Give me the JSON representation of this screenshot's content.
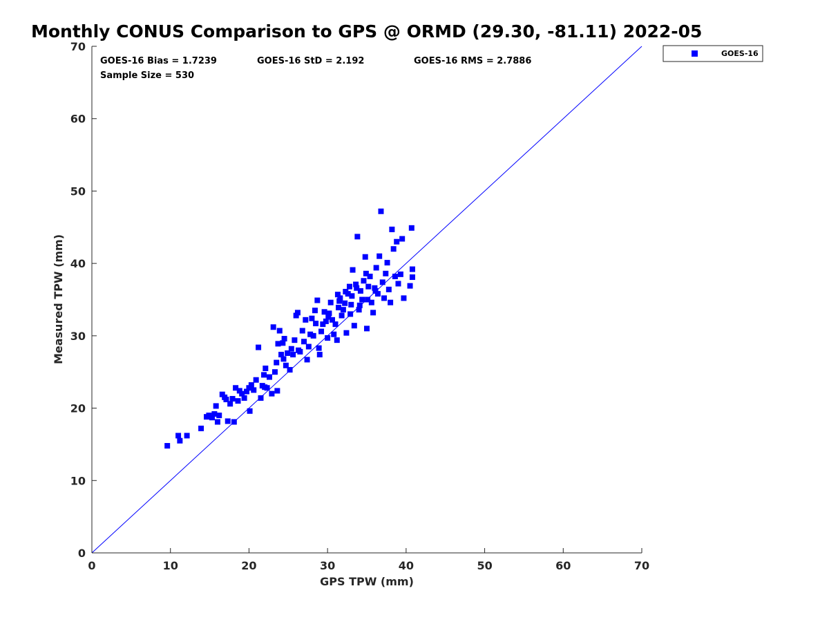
{
  "chart_data": {
    "type": "scatter",
    "title": "Monthly CONUS Comparison to GPS @ ORMD (29.30, -81.11) 2022-05",
    "xlabel": "GPS TPW (mm)",
    "ylabel": "Measured TPW (mm)",
    "xlim": [
      0,
      70
    ],
    "ylim": [
      0,
      70
    ],
    "xticks": [
      "0",
      "10",
      "20",
      "30",
      "40",
      "50",
      "60",
      "70"
    ],
    "yticks": [
      "0",
      "10",
      "20",
      "30",
      "40",
      "50",
      "60",
      "70"
    ],
    "grid": false,
    "legend_position": "top-right, outside plot",
    "colors": {
      "series": "#0000ff",
      "reference_line": "#0000ff"
    },
    "reference_line": {
      "from": [
        0,
        0
      ],
      "to": [
        70,
        70
      ]
    },
    "stats": {
      "bias": "GOES-16 Bias = 1.7239",
      "std": "GOES-16 StD = 2.192",
      "rms": "GOES-16 RMS = 2.7886",
      "sample_size": "Sample Size = 530"
    },
    "series": [
      {
        "name": "GOES-16",
        "marker": "square",
        "points": [
          [
            9.6,
            14.8
          ],
          [
            11.0,
            16.2
          ],
          [
            11.2,
            15.5
          ],
          [
            12.1,
            16.2
          ],
          [
            13.9,
            17.2
          ],
          [
            14.6,
            18.8
          ],
          [
            14.9,
            19.0
          ],
          [
            15.3,
            18.7
          ],
          [
            15.6,
            19.2
          ],
          [
            15.8,
            20.3
          ],
          [
            16.0,
            18.1
          ],
          [
            16.2,
            19.0
          ],
          [
            16.6,
            21.9
          ],
          [
            16.9,
            21.5
          ],
          [
            17.1,
            21.2
          ],
          [
            17.3,
            18.2
          ],
          [
            17.6,
            20.6
          ],
          [
            17.9,
            21.3
          ],
          [
            18.1,
            18.1
          ],
          [
            18.3,
            22.8
          ],
          [
            18.6,
            21.0
          ],
          [
            18.8,
            22.4
          ],
          [
            19.1,
            22.0
          ],
          [
            19.4,
            21.4
          ],
          [
            19.7,
            22.3
          ],
          [
            20.0,
            22.8
          ],
          [
            20.1,
            19.6
          ],
          [
            20.3,
            23.2
          ],
          [
            20.6,
            22.5
          ],
          [
            20.9,
            23.9
          ],
          [
            21.2,
            28.4
          ],
          [
            21.5,
            21.4
          ],
          [
            21.7,
            23.1
          ],
          [
            21.9,
            24.6
          ],
          [
            22.1,
            25.5
          ],
          [
            22.3,
            22.8
          ],
          [
            22.6,
            24.3
          ],
          [
            22.9,
            22.0
          ],
          [
            23.1,
            31.2
          ],
          [
            23.3,
            25.0
          ],
          [
            23.5,
            26.3
          ],
          [
            23.7,
            28.9
          ],
          [
            23.9,
            30.7
          ],
          [
            24.1,
            27.4
          ],
          [
            24.3,
            29.0
          ],
          [
            24.5,
            29.6
          ],
          [
            24.7,
            25.9
          ],
          [
            24.9,
            27.6
          ],
          [
            25.2,
            25.3
          ],
          [
            25.4,
            28.2
          ],
          [
            25.6,
            27.4
          ],
          [
            25.8,
            29.4
          ],
          [
            26.0,
            32.8
          ],
          [
            26.2,
            33.2
          ],
          [
            26.5,
            27.8
          ],
          [
            26.8,
            30.7
          ],
          [
            27.0,
            29.2
          ],
          [
            27.2,
            32.2
          ],
          [
            27.4,
            26.7
          ],
          [
            27.6,
            28.5
          ],
          [
            27.8,
            30.2
          ],
          [
            28.0,
            32.4
          ],
          [
            28.2,
            30.0
          ],
          [
            28.5,
            31.7
          ],
          [
            28.7,
            34.9
          ],
          [
            28.9,
            28.3
          ],
          [
            29.0,
            27.4
          ],
          [
            29.2,
            30.6
          ],
          [
            29.4,
            31.6
          ],
          [
            29.6,
            33.3
          ],
          [
            29.8,
            32.0
          ],
          [
            30.0,
            29.7
          ],
          [
            30.2,
            33.1
          ],
          [
            30.4,
            34.6
          ],
          [
            30.6,
            32.2
          ],
          [
            30.8,
            30.2
          ],
          [
            31.0,
            31.6
          ],
          [
            31.2,
            29.4
          ],
          [
            31.4,
            33.9
          ],
          [
            31.6,
            35.2
          ],
          [
            31.8,
            32.8
          ],
          [
            32.0,
            33.6
          ],
          [
            32.2,
            34.5
          ],
          [
            32.4,
            30.4
          ],
          [
            32.6,
            35.8
          ],
          [
            32.8,
            36.8
          ],
          [
            33.0,
            34.3
          ],
          [
            33.2,
            39.1
          ],
          [
            33.4,
            31.4
          ],
          [
            33.6,
            37.1
          ],
          [
            33.8,
            43.7
          ],
          [
            34.0,
            33.6
          ],
          [
            34.2,
            36.2
          ],
          [
            34.4,
            35.0
          ],
          [
            34.6,
            37.6
          ],
          [
            34.8,
            40.9
          ],
          [
            35.0,
            31.0
          ],
          [
            35.2,
            36.8
          ],
          [
            35.4,
            38.2
          ],
          [
            35.6,
            34.6
          ],
          [
            35.8,
            33.2
          ],
          [
            36.0,
            36.6
          ],
          [
            36.2,
            39.4
          ],
          [
            36.4,
            35.8
          ],
          [
            36.6,
            41.0
          ],
          [
            36.8,
            47.2
          ],
          [
            37.0,
            37.4
          ],
          [
            37.2,
            35.2
          ],
          [
            37.4,
            38.6
          ],
          [
            37.6,
            40.1
          ],
          [
            37.8,
            36.4
          ],
          [
            38.0,
            34.6
          ],
          [
            38.2,
            44.7
          ],
          [
            38.4,
            42.0
          ],
          [
            38.6,
            38.2
          ],
          [
            38.8,
            43.0
          ],
          [
            39.0,
            37.2
          ],
          [
            39.3,
            38.5
          ],
          [
            39.5,
            43.4
          ],
          [
            39.7,
            35.2
          ],
          [
            40.5,
            36.9
          ],
          [
            40.7,
            44.9
          ],
          [
            40.8,
            39.2
          ],
          [
            40.8,
            38.1
          ],
          [
            22.0,
            22.9
          ],
          [
            23.6,
            22.4
          ],
          [
            24.4,
            26.8
          ],
          [
            26.3,
            28.0
          ],
          [
            28.4,
            33.5
          ],
          [
            30.1,
            32.6
          ],
          [
            31.5,
            34.8
          ],
          [
            32.3,
            36.1
          ],
          [
            33.1,
            35.5
          ],
          [
            34.1,
            34.2
          ],
          [
            35.1,
            35.0
          ],
          [
            36.1,
            36.2
          ],
          [
            31.3,
            35.7
          ],
          [
            32.9,
            33.0
          ],
          [
            33.7,
            36.6
          ],
          [
            34.9,
            38.6
          ]
        ]
      }
    ]
  }
}
